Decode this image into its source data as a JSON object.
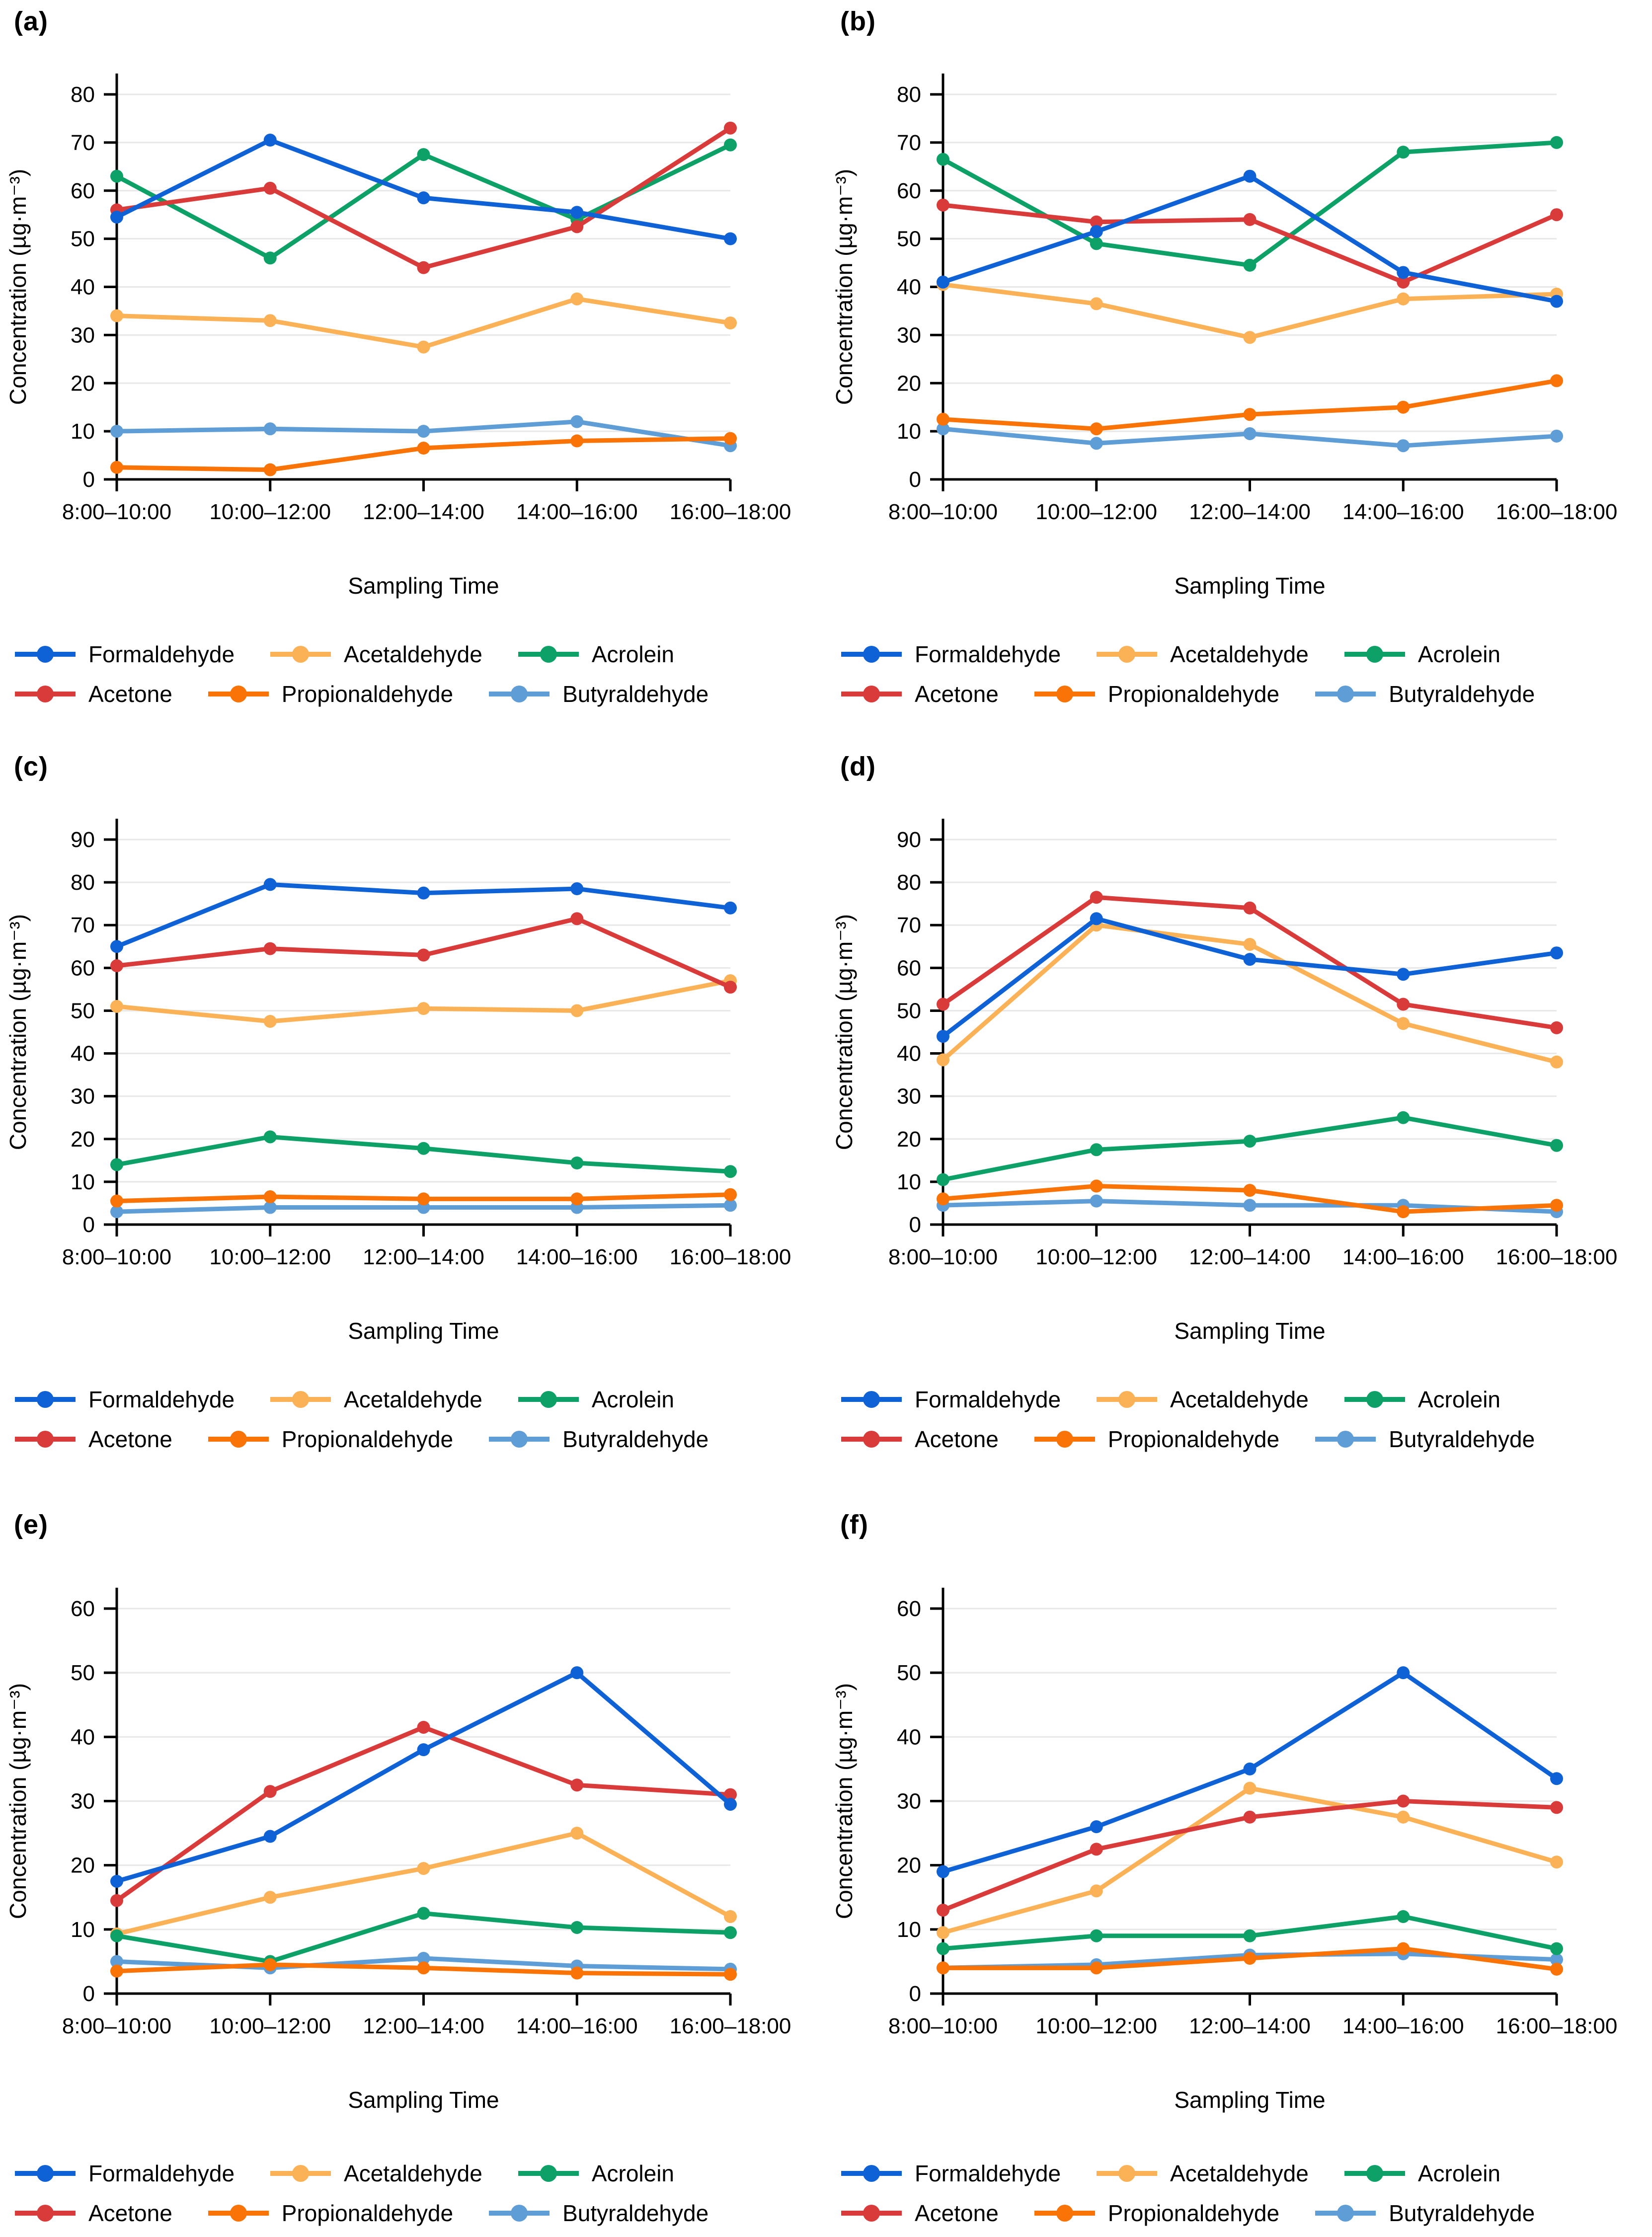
{
  "figure": {
    "xlabel": "Sampling Time",
    "ylabel": "Concentration (µg·m⁻³)",
    "grid_color": "#e8e8e8",
    "axis_color": "#000000",
    "palette": {
      "formaldehyde": "#0f62d6",
      "acetaldehyde": "#fbb156",
      "acrolein": "#0ea167",
      "acetone": "#d93b3b",
      "propionaldehyde": "#f97306",
      "butyraldehyde": "#5f9dd6"
    },
    "labels": {
      "formaldehyde": "Formaldehyde",
      "acetaldehyde": "Acetaldehyde",
      "acrolein": "Acrolein",
      "acetone": "Acetone",
      "propionaldehyde": "Propionaldehyde",
      "butyraldehyde": "Butyraldehyde"
    },
    "legend_rows": [
      [
        "formaldehyde",
        "acetaldehyde",
        "acrolein"
      ],
      [
        "acetone",
        "propionaldehyde",
        "butyraldehyde"
      ]
    ]
  },
  "chart_data": [
    {
      "type": "line",
      "panel_label": "(a)",
      "xlabel": "Sampling Time",
      "ylabel": "Concentration (µg·m⁻³)",
      "ylim": [
        0,
        80
      ],
      "ytick_step": 10,
      "grid": true,
      "legend_position": "bottom",
      "categories": [
        "8:00–10:00",
        "10:00–12:00",
        "12:00–14:00",
        "14:00–16:00",
        "16:00–18:00"
      ],
      "series": [
        {
          "key": "acetaldehyde",
          "name": "Acetaldehyde",
          "values": [
            34,
            33,
            27.5,
            37.5,
            32.5
          ]
        },
        {
          "key": "butyraldehyde",
          "name": "Butyraldehyde",
          "values": [
            10,
            10.5,
            10,
            12,
            7
          ]
        },
        {
          "key": "acrolein",
          "name": "Acrolein",
          "values": [
            63,
            46,
            67.5,
            54,
            69.5
          ]
        },
        {
          "key": "acetone",
          "name": "Acetone",
          "values": [
            56,
            60.5,
            44,
            52.5,
            73
          ]
        },
        {
          "key": "propionaldehyde",
          "name": "Propionaldehyde",
          "values": [
            2.5,
            2,
            6.5,
            8,
            8.5
          ]
        },
        {
          "key": "formaldehyde",
          "name": "Formaldehyde",
          "values": [
            54.5,
            70.5,
            58.5,
            55.5,
            50
          ]
        }
      ]
    },
    {
      "type": "line",
      "panel_label": "(b)",
      "xlabel": "Sampling Time",
      "ylabel": "Concentration (µg·m⁻³)",
      "ylim": [
        0,
        80
      ],
      "ytick_step": 10,
      "grid": true,
      "legend_position": "bottom",
      "categories": [
        "8:00–10:00",
        "10:00–12:00",
        "12:00–14:00",
        "14:00–16:00",
        "16:00–18:00"
      ],
      "series": [
        {
          "key": "acetaldehyde",
          "name": "Acetaldehyde",
          "values": [
            40.5,
            36.5,
            29.5,
            37.5,
            38.5
          ]
        },
        {
          "key": "butyraldehyde",
          "name": "Butyraldehyde",
          "values": [
            10.5,
            7.5,
            9.5,
            7,
            9
          ]
        },
        {
          "key": "acrolein",
          "name": "Acrolein",
          "values": [
            66.5,
            49,
            44.5,
            68,
            70
          ]
        },
        {
          "key": "acetone",
          "name": "Acetone",
          "values": [
            57,
            53.5,
            54,
            41,
            55
          ]
        },
        {
          "key": "propionaldehyde",
          "name": "Propionaldehyde",
          "values": [
            12.5,
            10.5,
            13.5,
            15,
            20.5
          ]
        },
        {
          "key": "formaldehyde",
          "name": "Formaldehyde",
          "values": [
            41,
            51.5,
            63,
            43,
            37
          ]
        }
      ]
    },
    {
      "type": "line",
      "panel_label": "(c)",
      "xlabel": "Sampling Time",
      "ylabel": "Concentration (µg·m⁻³)",
      "ylim": [
        0,
        90
      ],
      "ytick_step": 10,
      "grid": true,
      "legend_position": "bottom",
      "categories": [
        "8:00–10:00",
        "10:00–12:00",
        "12:00–14:00",
        "14:00–16:00",
        "16:00–18:00"
      ],
      "series": [
        {
          "key": "acetaldehyde",
          "name": "Acetaldehyde",
          "values": [
            51,
            47.5,
            50.5,
            50,
            57
          ]
        },
        {
          "key": "butyraldehyde",
          "name": "Butyraldehyde",
          "values": [
            3,
            4,
            4,
            4,
            4.5
          ]
        },
        {
          "key": "acrolein",
          "name": "Acrolein",
          "values": [
            14,
            20.5,
            17.8,
            14.4,
            12.4
          ]
        },
        {
          "key": "acetone",
          "name": "Acetone",
          "values": [
            60.5,
            64.5,
            63,
            71.5,
            55.5
          ]
        },
        {
          "key": "propionaldehyde",
          "name": "Propionaldehyde",
          "values": [
            5.5,
            6.5,
            6,
            6,
            7
          ]
        },
        {
          "key": "formaldehyde",
          "name": "Formaldehyde",
          "values": [
            65,
            79.5,
            77.5,
            78.5,
            74
          ]
        }
      ]
    },
    {
      "type": "line",
      "panel_label": "(d)",
      "xlabel": "Sampling Time",
      "ylabel": "Concentration (µg·m⁻³)",
      "ylim": [
        0,
        90
      ],
      "ytick_step": 10,
      "grid": true,
      "legend_position": "bottom",
      "categories": [
        "8:00–10:00",
        "10:00–12:00",
        "12:00–14:00",
        "14:00–16:00",
        "16:00–18:00"
      ],
      "series": [
        {
          "key": "acetaldehyde",
          "name": "Acetaldehyde",
          "values": [
            38.5,
            70,
            65.5,
            47,
            38
          ]
        },
        {
          "key": "butyraldehyde",
          "name": "Butyraldehyde",
          "values": [
            4.5,
            5.5,
            4.5,
            4.5,
            3
          ]
        },
        {
          "key": "acrolein",
          "name": "Acrolein",
          "values": [
            10.5,
            17.5,
            19.5,
            25,
            18.5
          ]
        },
        {
          "key": "acetone",
          "name": "Acetone",
          "values": [
            51.5,
            76.5,
            74,
            51.5,
            46
          ]
        },
        {
          "key": "propionaldehyde",
          "name": "Propionaldehyde",
          "values": [
            6,
            9,
            8,
            3,
            4.5
          ]
        },
        {
          "key": "formaldehyde",
          "name": "Formaldehyde",
          "values": [
            44,
            71.5,
            62,
            58.5,
            63.5
          ]
        }
      ]
    },
    {
      "type": "line",
      "panel_label": "(e)",
      "xlabel": "Sampling Time",
      "ylabel": "Concentration (µg·m⁻³)",
      "ylim": [
        0,
        60
      ],
      "ytick_step": 10,
      "grid": true,
      "legend_position": "bottom",
      "categories": [
        "8:00–10:00",
        "10:00–12:00",
        "12:00–14:00",
        "14:00–16:00",
        "16:00–18:00"
      ],
      "series": [
        {
          "key": "acetaldehyde",
          "name": "Acetaldehyde",
          "values": [
            9.3,
            15,
            19.5,
            25,
            12
          ]
        },
        {
          "key": "butyraldehyde",
          "name": "Butyraldehyde",
          "values": [
            5,
            4,
            5.5,
            4.3,
            3.8
          ]
        },
        {
          "key": "acrolein",
          "name": "Acrolein",
          "values": [
            9,
            5,
            12.5,
            10.3,
            9.5
          ]
        },
        {
          "key": "acetone",
          "name": "Acetone",
          "values": [
            14.5,
            31.5,
            41.5,
            32.5,
            31
          ]
        },
        {
          "key": "propionaldehyde",
          "name": "Propionaldehyde",
          "values": [
            3.5,
            4.5,
            4,
            3.2,
            3
          ]
        },
        {
          "key": "formaldehyde",
          "name": "Formaldehyde",
          "values": [
            17.5,
            24.5,
            38,
            50,
            29.5
          ]
        }
      ]
    },
    {
      "type": "line",
      "panel_label": "(f)",
      "xlabel": "Sampling Time",
      "ylabel": "Concentration (µg·m⁻³)",
      "ylim": [
        0,
        60
      ],
      "ytick_step": 10,
      "grid": true,
      "legend_position": "bottom",
      "categories": [
        "8:00–10:00",
        "10:00–12:00",
        "12:00–14:00",
        "14:00–16:00",
        "16:00–18:00"
      ],
      "series": [
        {
          "key": "acetaldehyde",
          "name": "Acetaldehyde",
          "values": [
            9.5,
            16,
            32,
            27.5,
            20.5
          ]
        },
        {
          "key": "butyraldehyde",
          "name": "Butyraldehyde",
          "values": [
            4,
            4.5,
            6,
            6.2,
            5.3
          ]
        },
        {
          "key": "acrolein",
          "name": "Acrolein",
          "values": [
            7,
            9,
            9,
            12,
            7
          ]
        },
        {
          "key": "acetone",
          "name": "Acetone",
          "values": [
            13,
            22.5,
            27.5,
            30,
            29
          ]
        },
        {
          "key": "propionaldehyde",
          "name": "Propionaldehyde",
          "values": [
            4,
            4,
            5.5,
            7,
            3.8
          ]
        },
        {
          "key": "formaldehyde",
          "name": "Formaldehyde",
          "values": [
            19,
            26,
            35,
            50,
            33.5
          ]
        }
      ]
    }
  ]
}
